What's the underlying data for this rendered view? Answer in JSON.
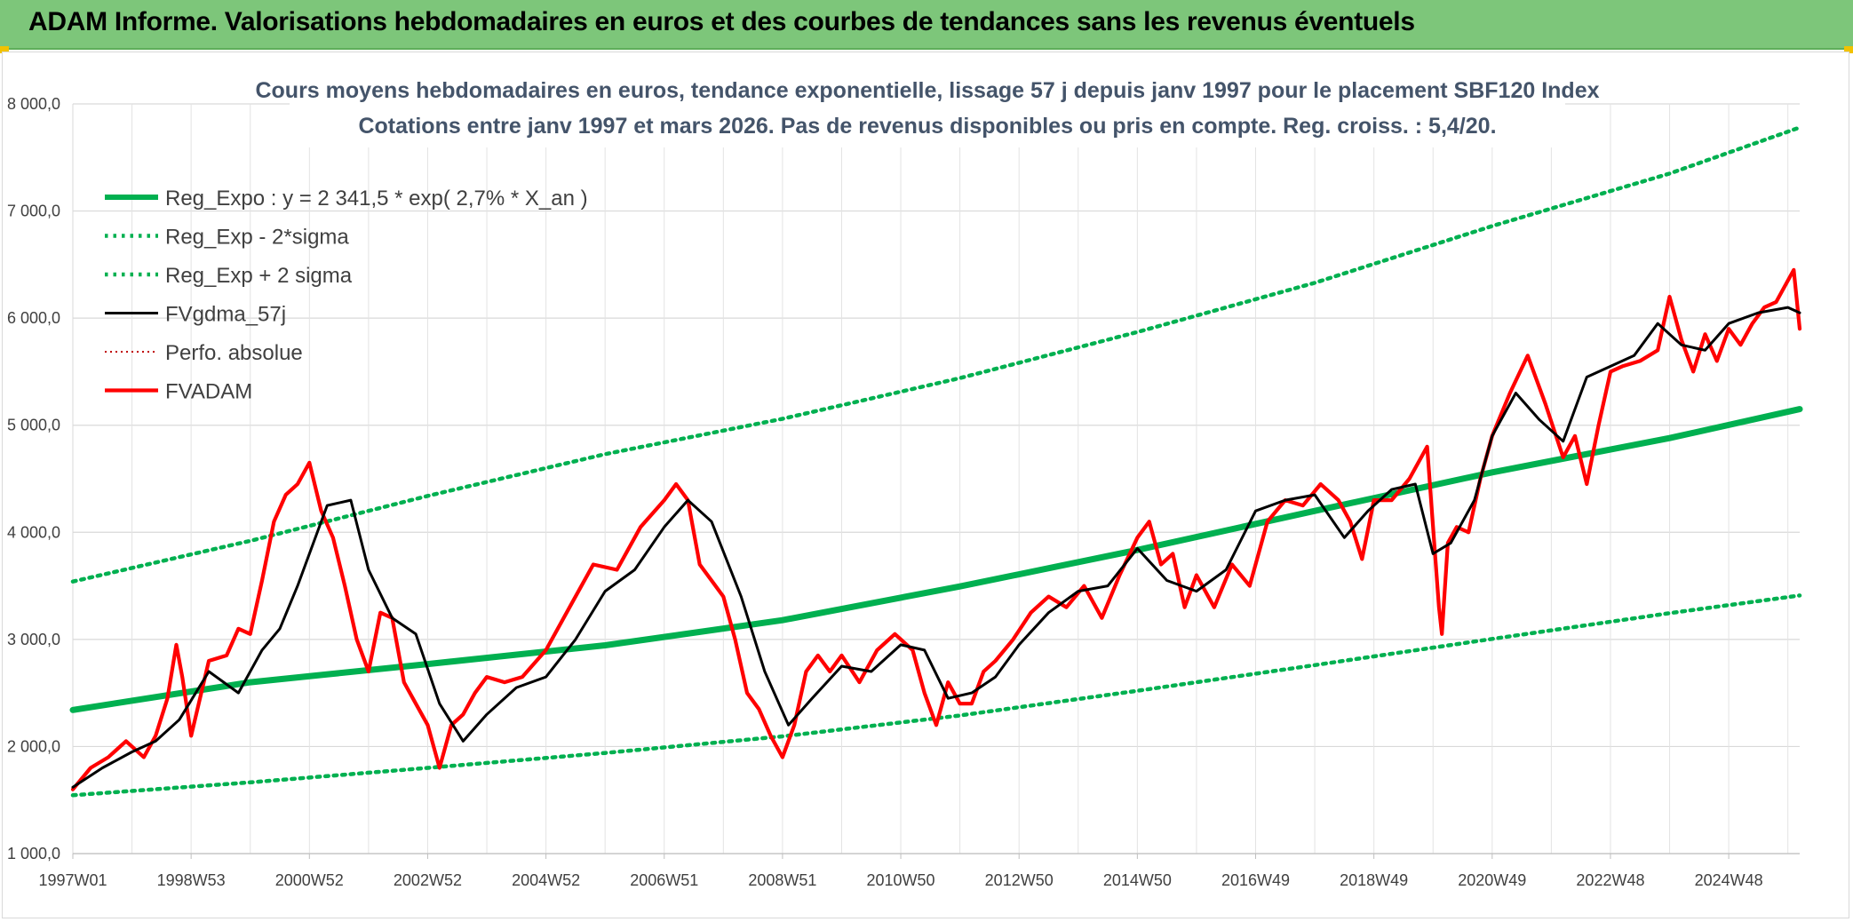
{
  "header": {
    "title": "ADAM Informe. Valorisations hebdomadaires en euros et des courbes de tendances sans les revenus éventuels"
  },
  "colors": {
    "banner": "#7dc67a",
    "reg_expo": "#00b050",
    "fvgdma": "#000000",
    "fvadam": "#ff0000",
    "perfo": "#c00000"
  },
  "chart_data": {
    "type": "line",
    "title_lines": [
      "Cours moyens hebdomadaires en euros, tendance exponentielle, lissage 57 j depuis janv 1997 pour le placement SBF120 Index",
      "Cotations entre janv 1997 et mars 2026. Pas de revenus disponibles ou pris en compte. Reg. croiss. : 5,4/20."
    ],
    "ylim": [
      1000,
      8000
    ],
    "xlim": [
      1997.0,
      2026.2
    ],
    "y_ticks": [
      "1 000,0",
      "2 000,0",
      "3 000,0",
      "4 000,0",
      "5 000,0",
      "6 000,0",
      "7 000,0",
      "8 000,0"
    ],
    "y_tick_values": [
      1000,
      2000,
      3000,
      4000,
      5000,
      6000,
      7000,
      8000
    ],
    "x_ticks": [
      "1997W01",
      "1998W53",
      "2000W52",
      "2002W52",
      "2004W52",
      "2006W51",
      "2008W51",
      "2010W50",
      "2012W50",
      "2014W50",
      "2016W49",
      "2018W49",
      "2020W49",
      "2022W48",
      "2024W48"
    ],
    "x_tick_values": [
      1997.0,
      1999.0,
      2001.0,
      2003.0,
      2005.0,
      2007.0,
      2009.0,
      2011.0,
      2013.0,
      2015.0,
      2017.0,
      2019.0,
      2021.0,
      2023.0,
      2025.0
    ],
    "grid": true,
    "legend_position": "top-left",
    "series": [
      {
        "name": "Reg_Expo : y = 2 341,5 * exp( 2,7% *  X_an )",
        "style": "solid-thick",
        "color": "#00b050",
        "x": [
          1997.0,
          2000.0,
          2003.0,
          2006.0,
          2009.0,
          2012.0,
          2015.0,
          2018.0,
          2021.0,
          2024.0,
          2026.2
        ],
        "y": [
          2341,
          2600,
          2770,
          2945,
          3180,
          3495,
          3835,
          4200,
          4560,
          4880,
          5150
        ]
      },
      {
        "name": "Reg_Exp - 2*sigma",
        "style": "dotted",
        "color": "#00b050",
        "x": [
          1997.0,
          2000.0,
          2003.0,
          2006.0,
          2009.0,
          2012.0,
          2015.0,
          2018.0,
          2021.0,
          2024.0,
          2026.2
        ],
        "y": [
          1545,
          1665,
          1800,
          1940,
          2095,
          2290,
          2520,
          2760,
          3005,
          3245,
          3410
        ]
      },
      {
        "name": "Reg_Exp + 2 sigma",
        "style": "dotted",
        "color": "#00b050",
        "x": [
          1997.0,
          2000.0,
          2003.0,
          2006.0,
          2009.0,
          2012.0,
          2015.0,
          2018.0,
          2021.0,
          2024.0,
          2026.2
        ],
        "y": [
          3540,
          3920,
          4340,
          4730,
          5060,
          5440,
          5870,
          6330,
          6860,
          7350,
          7780
        ]
      },
      {
        "name": "FVgdma_57j",
        "style": "solid",
        "color": "#000000",
        "x": [
          1997.0,
          1997.5,
          1998.0,
          1998.4,
          1998.8,
          1999.3,
          1999.8,
          2000.2,
          2000.5,
          2000.8,
          2001.3,
          2001.7,
          2002.0,
          2002.4,
          2002.8,
          2003.2,
          2003.6,
          2004.0,
          2004.5,
          2005.0,
          2005.5,
          2006.0,
          2006.5,
          2007.0,
          2007.4,
          2007.8,
          2008.3,
          2008.7,
          2009.1,
          2009.5,
          2010.0,
          2010.5,
          2011.0,
          2011.4,
          2011.8,
          2012.2,
          2012.6,
          2013.0,
          2013.5,
          2014.0,
          2014.5,
          2015.0,
          2015.5,
          2016.0,
          2016.5,
          2017.0,
          2017.5,
          2018.0,
          2018.5,
          2018.9,
          2019.3,
          2019.7,
          2020.0,
          2020.3,
          2020.7,
          2021.0,
          2021.4,
          2021.8,
          2022.2,
          2022.6,
          2023.0,
          2023.4,
          2023.8,
          2024.2,
          2024.6,
          2025.0,
          2025.5,
          2026.0,
          2026.2
        ],
        "y": [
          1620,
          1800,
          1950,
          2050,
          2250,
          2700,
          2500,
          2900,
          3100,
          3500,
          4250,
          4300,
          3650,
          3200,
          3050,
          2400,
          2050,
          2300,
          2550,
          2650,
          3000,
          3450,
          3650,
          4050,
          4300,
          4100,
          3400,
          2700,
          2200,
          2450,
          2750,
          2700,
          2950,
          2900,
          2450,
          2500,
          2650,
          2950,
          3250,
          3450,
          3500,
          3850,
          3550,
          3450,
          3650,
          4200,
          4300,
          4350,
          3950,
          4200,
          4400,
          4450,
          3800,
          3900,
          4300,
          4900,
          5300,
          5050,
          4850,
          5450,
          5550,
          5650,
          5950,
          5750,
          5700,
          5950,
          6050,
          6100,
          6050
        ]
      },
      {
        "name": "Perfo. absolue",
        "style": "dotted",
        "color": "#c00000",
        "x": [],
        "y": []
      },
      {
        "name": "FVADAM",
        "style": "solid-thick",
        "color": "#ff0000",
        "x": [
          1997.0,
          1997.3,
          1997.6,
          1997.9,
          1998.2,
          1998.4,
          1998.6,
          1998.75,
          1998.85,
          1999.0,
          1999.3,
          1999.6,
          1999.8,
          2000.0,
          2000.2,
          2000.4,
          2000.6,
          2000.8,
          2001.0,
          2001.2,
          2001.4,
          2001.6,
          2001.8,
          2002.0,
          2002.2,
          2002.4,
          2002.6,
          2002.8,
          2003.0,
          2003.2,
          2003.4,
          2003.6,
          2003.8,
          2004.0,
          2004.3,
          2004.6,
          2005.0,
          2005.4,
          2005.8,
          2006.2,
          2006.6,
          2007.0,
          2007.2,
          2007.4,
          2007.6,
          2007.8,
          2008.0,
          2008.2,
          2008.4,
          2008.6,
          2008.8,
          2009.0,
          2009.2,
          2009.4,
          2009.6,
          2009.8,
          2010.0,
          2010.3,
          2010.6,
          2010.9,
          2011.2,
          2011.4,
          2011.6,
          2011.8,
          2012.0,
          2012.2,
          2012.4,
          2012.6,
          2012.9,
          2013.2,
          2013.5,
          2013.8,
          2014.1,
          2014.4,
          2014.7,
          2015.0,
          2015.2,
          2015.4,
          2015.6,
          2015.8,
          2016.0,
          2016.3,
          2016.6,
          2016.9,
          2017.2,
          2017.5,
          2017.8,
          2018.1,
          2018.4,
          2018.6,
          2018.8,
          2019.0,
          2019.3,
          2019.6,
          2019.9,
          2020.1,
          2020.15,
          2020.25,
          2020.4,
          2020.6,
          2020.8,
          2021.0,
          2021.3,
          2021.6,
          2021.9,
          2022.2,
          2022.4,
          2022.6,
          2022.8,
          2023.0,
          2023.2,
          2023.5,
          2023.8,
          2024.0,
          2024.2,
          2024.4,
          2024.6,
          2024.8,
          2025.0,
          2025.2,
          2025.4,
          2025.6,
          2025.8,
          2026.0,
          2026.1,
          2026.2
        ],
        "y": [
          1600,
          1800,
          1900,
          2050,
          1900,
          2100,
          2450,
          2950,
          2650,
          2100,
          2800,
          2850,
          3100,
          3050,
          3550,
          4100,
          4350,
          4450,
          4650,
          4200,
          3950,
          3500,
          3000,
          2700,
          3250,
          3200,
          2600,
          2400,
          2200,
          1800,
          2200,
          2300,
          2500,
          2650,
          2600,
          2650,
          2900,
          3300,
          3700,
          3650,
          4050,
          4300,
          4450,
          4300,
          3700,
          3550,
          3400,
          3000,
          2500,
          2350,
          2100,
          1900,
          2200,
          2700,
          2850,
          2700,
          2850,
          2600,
          2900,
          3050,
          2900,
          2500,
          2200,
          2600,
          2400,
          2400,
          2700,
          2800,
          3000,
          3250,
          3400,
          3300,
          3500,
          3200,
          3600,
          3950,
          4100,
          3700,
          3800,
          3300,
          3600,
          3300,
          3700,
          3500,
          4100,
          4300,
          4250,
          4450,
          4300,
          4100,
          3750,
          4300,
          4300,
          4500,
          4800,
          3300,
          3050,
          3900,
          4050,
          4000,
          4500,
          4900,
          5300,
          5650,
          5200,
          4700,
          4900,
          4450,
          5000,
          5500,
          5550,
          5600,
          5700,
          6200,
          5800,
          5500,
          5850,
          5600,
          5900,
          5750,
          5950,
          6100,
          6150,
          6350,
          6450,
          5900
        ]
      }
    ]
  }
}
